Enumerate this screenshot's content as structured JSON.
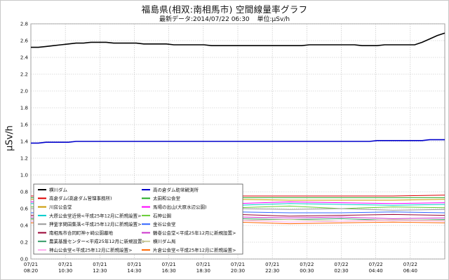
{
  "page": {
    "title": "福島県(相双:南相馬市) 空間線量率グラフ",
    "latest_label": "最新データ:2014/07/22 06:30",
    "unit_label": "単位:μSv/h"
  },
  "chart_data": {
    "type": "line",
    "title": "福島県(相双:南相馬市) 空間線量率グラフ",
    "ylabel": "μSv/h",
    "ylim": [
      0.0,
      2.8
    ],
    "y_ticks": [
      0.0,
      0.2,
      0.4,
      0.6,
      0.8,
      1.0,
      1.2,
      1.4,
      1.6,
      1.8,
      2.0,
      2.2,
      2.4,
      2.6,
      2.8
    ],
    "y_tick_labels": [
      "0.0",
      "0.2",
      "0.4",
      "0.6",
      "0.8",
      "1.0",
      "1.2",
      "1.4",
      "1.6",
      "1.8",
      "2.0",
      "2.2",
      "2.4",
      "2.6",
      "2.8"
    ],
    "x_ticks": [
      {
        "date": "07/21",
        "time": "08:20"
      },
      {
        "date": "07/21",
        "time": "10:30"
      },
      {
        "date": "07/21",
        "time": "12:30"
      },
      {
        "date": "07/21",
        "time": "14:30"
      },
      {
        "date": "07/21",
        "time": "16:30"
      },
      {
        "date": "07/21",
        "time": "18:30"
      },
      {
        "date": "07/21",
        "time": "20:30"
      },
      {
        "date": "07/21",
        "time": "22:30"
      },
      {
        "date": "07/22",
        "time": "00:30"
      },
      {
        "date": "07/22",
        "time": "02:30"
      },
      {
        "date": "07/22",
        "time": "04:40"
      },
      {
        "date": "07/22",
        "time": "06:40"
      }
    ],
    "grid": true,
    "legend_position": "bottom-left",
    "x_start": "07/21 08:20",
    "x_end": "07/22 07:40",
    "series": [
      {
        "name": "横川ダム",
        "color": "#000000",
        "values": [
          2.52,
          2.52,
          2.53,
          2.54,
          2.55,
          2.56,
          2.57,
          2.57,
          2.58,
          2.58,
          2.58,
          2.57,
          2.57,
          2.57,
          2.57,
          2.56,
          2.56,
          2.56,
          2.56,
          2.55,
          2.55,
          2.55,
          2.55,
          2.55,
          2.54,
          2.54,
          2.54,
          2.54,
          2.54,
          2.54,
          2.54,
          2.54,
          2.54,
          2.54,
          2.54,
          2.54,
          2.54,
          2.55,
          2.55,
          2.55,
          2.55,
          2.55,
          2.55,
          2.55,
          2.54,
          2.54,
          2.54,
          2.55,
          2.55,
          2.55,
          2.55,
          2.55,
          2.58,
          2.62,
          2.66,
          2.69
        ]
      },
      {
        "name": "高の倉ダム助常観測所",
        "color": "#0000cc",
        "values": [
          1.38,
          1.38,
          1.39,
          1.39,
          1.39,
          1.39,
          1.4,
          1.4,
          1.4,
          1.4,
          1.4,
          1.4,
          1.4,
          1.4,
          1.4,
          1.4,
          1.4,
          1.4,
          1.4,
          1.4,
          1.4,
          1.4,
          1.4,
          1.4,
          1.4,
          1.4,
          1.4,
          1.4,
          1.4,
          1.4,
          1.4,
          1.4,
          1.4,
          1.4,
          1.4,
          1.4,
          1.4,
          1.4,
          1.4,
          1.4,
          1.4,
          1.4,
          1.4,
          1.4,
          1.4,
          1.4,
          1.41,
          1.41,
          1.41,
          1.41,
          1.41,
          1.41,
          1.41,
          1.42,
          1.42,
          1.42
        ]
      },
      {
        "name": "高倉ダム(高倉ダム管理事務所)",
        "color": "#dd0000",
        "values": [
          0.75,
          0.75,
          0.75,
          0.75,
          0.75,
          0.75,
          0.75,
          0.75,
          0.76
        ]
      },
      {
        "name": "太田和公会堂",
        "color": "#22aa22",
        "values": [
          0.73,
          0.73,
          0.73,
          0.73,
          0.73,
          0.73,
          0.73,
          0.73,
          0.73
        ]
      },
      {
        "name": "川房公会堂",
        "color": "#cc9900",
        "values": [
          0.71,
          0.7,
          0.7,
          0.7,
          0.71,
          0.7,
          0.7,
          0.7,
          0.71
        ]
      },
      {
        "name": "馬場の出山(大原水辺公園)",
        "color": "#ff00ff",
        "values": [
          0.68,
          0.67,
          0.68,
          0.67,
          0.66,
          0.68,
          0.67,
          0.66,
          0.67
        ]
      },
      {
        "name": "大原公会堂近傍<平成25年12月に新規設置>",
        "color": "#00cccc",
        "values": [
          0.66,
          0.65,
          0.66,
          0.65,
          0.64,
          0.66,
          0.65,
          0.64,
          0.65
        ]
      },
      {
        "name": "石神公園",
        "color": "#66cc33",
        "values": [
          0.62,
          0.63,
          0.6,
          0.62,
          0.61,
          0.63,
          0.6,
          0.62,
          0.61
        ]
      },
      {
        "name": "押釜字関田集落<平成25年12月に新規設置>",
        "color": "#999999",
        "values": [
          0.6,
          0.59,
          0.6,
          0.58,
          0.6,
          0.59,
          0.6,
          0.58,
          0.59
        ]
      },
      {
        "name": "金谷公会堂",
        "color": "#3366ff",
        "values": [
          0.55,
          0.56,
          0.55,
          0.55,
          0.56,
          0.55,
          0.55,
          0.56,
          0.55
        ]
      },
      {
        "name": "南相馬市合同町神ヶ崎公園墓地",
        "color": "#990033",
        "values": [
          0.52,
          0.53,
          0.51,
          0.52,
          0.53,
          0.51,
          0.52,
          0.53,
          0.52
        ]
      },
      {
        "name": "鶴巻公会堂<平成25年12月に新規設置>",
        "color": "#cc33cc",
        "values": [
          0.5,
          0.49,
          0.5,
          0.48,
          0.5,
          0.49,
          0.5,
          0.48,
          0.49
        ]
      },
      {
        "name": "農業基盤センター<平成25年12月に新規設置>",
        "color": "#339966",
        "values": [
          0.48,
          0.47,
          0.48,
          0.46,
          0.48,
          0.47,
          0.48,
          0.46,
          0.47
        ]
      },
      {
        "name": "横川ダム局",
        "color": "#cccc99",
        "values": [
          0.47,
          0.46,
          0.47,
          0.45,
          0.46,
          0.47,
          0.45,
          0.47,
          0.46
        ]
      },
      {
        "name": "神山公会堂<平成25年12月に新規設置>",
        "color": "#ffaaee",
        "values": [
          0.45,
          0.46,
          0.44,
          0.45,
          0.46,
          0.44,
          0.45,
          0.46,
          0.45
        ]
      },
      {
        "name": "片倉公会堂<平成25年12月に新規設置>",
        "color": "#ff6600",
        "values": [
          0.43,
          0.44,
          0.42,
          0.43,
          0.44,
          0.42,
          0.43,
          0.44,
          0.43
        ]
      }
    ]
  }
}
